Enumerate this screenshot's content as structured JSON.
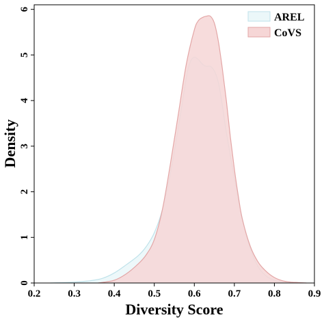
{
  "chart_data": {
    "type": "area",
    "title": "",
    "xlabel": "Diversity Score",
    "ylabel": "Density",
    "xlim": [
      0.2,
      0.9
    ],
    "ylim": [
      0,
      6.1
    ],
    "xticks": [
      0.2,
      0.3,
      0.4,
      0.5,
      0.6,
      0.7,
      0.8,
      0.9
    ],
    "yticks": [
      0,
      1,
      2,
      3,
      4,
      5,
      6
    ],
    "grid": false,
    "legend_position": "top-right",
    "series": [
      {
        "name": "AREL",
        "color": "#ebf7f9",
        "stroke": "#bfe2ea",
        "x": [
          0.24,
          0.3,
          0.34,
          0.37,
          0.4,
          0.43,
          0.46,
          0.48,
          0.5,
          0.52,
          0.54,
          0.56,
          0.58,
          0.59,
          0.6,
          0.61,
          0.62,
          0.63,
          0.64,
          0.65,
          0.66,
          0.67,
          0.68,
          0.7,
          0.72,
          0.74,
          0.76,
          0.78,
          0.8,
          0.82,
          0.84
        ],
        "y": [
          0.0,
          0.02,
          0.05,
          0.1,
          0.22,
          0.4,
          0.6,
          0.8,
          1.1,
          1.6,
          2.4,
          3.4,
          4.5,
          4.85,
          4.95,
          4.9,
          4.8,
          4.75,
          4.75,
          4.65,
          4.4,
          3.9,
          3.3,
          2.3,
          1.4,
          0.75,
          0.35,
          0.15,
          0.06,
          0.02,
          0.0
        ]
      },
      {
        "name": "CoVS",
        "color": "#f6d6d6",
        "stroke": "#e3a6a6",
        "x": [
          0.36,
          0.4,
          0.43,
          0.46,
          0.48,
          0.5,
          0.52,
          0.54,
          0.56,
          0.58,
          0.6,
          0.61,
          0.62,
          0.63,
          0.64,
          0.65,
          0.66,
          0.67,
          0.68,
          0.69,
          0.7,
          0.71,
          0.72,
          0.74,
          0.76,
          0.78,
          0.8,
          0.82,
          0.84,
          0.86,
          0.88
        ],
        "y": [
          0.0,
          0.06,
          0.2,
          0.42,
          0.62,
          0.95,
          1.6,
          2.6,
          3.7,
          4.8,
          5.55,
          5.75,
          5.82,
          5.85,
          5.85,
          5.7,
          5.3,
          4.7,
          4.0,
          3.2,
          2.5,
          1.9,
          1.4,
          0.8,
          0.45,
          0.25,
          0.12,
          0.05,
          0.02,
          0.01,
          0.0
        ]
      }
    ]
  }
}
